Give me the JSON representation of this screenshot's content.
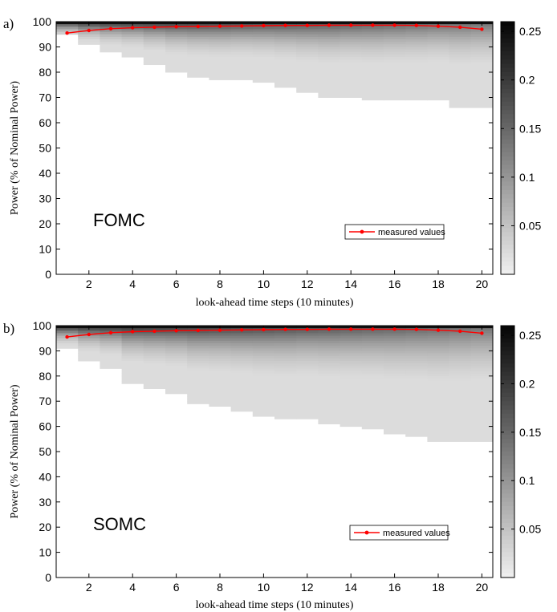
{
  "chart_data": [
    {
      "panel_label": "a)",
      "type": "heatmap",
      "annotation": "FOMC",
      "xlabel": "look-ahead time steps (10 minutes)",
      "ylabel": "Power (% of Nominal Power)",
      "xlim": [
        0.5,
        20.5
      ],
      "ylim": [
        0,
        100
      ],
      "xticks": [
        2,
        4,
        6,
        8,
        10,
        12,
        14,
        16,
        18,
        20
      ],
      "yticks": [
        0,
        10,
        20,
        30,
        40,
        50,
        60,
        70,
        80,
        90,
        100
      ],
      "colorbar": {
        "ticks": [
          0.05,
          0.1,
          0.15,
          0.2,
          0.25
        ],
        "range": [
          0,
          0.26
        ],
        "colormap": "gray-reversed"
      },
      "lower_extent": [
        95,
        91,
        88,
        86,
        83,
        80,
        78,
        77,
        77,
        76,
        74,
        72,
        70,
        70,
        69,
        69,
        69,
        69,
        66,
        66
      ],
      "series": [
        {
          "name": "measured values",
          "color": "#ff0000",
          "x": [
            1,
            2,
            3,
            4,
            5,
            6,
            7,
            8,
            9,
            10,
            11,
            12,
            13,
            14,
            15,
            16,
            17,
            18,
            19,
            20
          ],
          "values": [
            95.5,
            96.5,
            97.2,
            97.6,
            97.8,
            98.0,
            98.1,
            98.2,
            98.3,
            98.4,
            98.5,
            98.5,
            98.6,
            98.6,
            98.6,
            98.6,
            98.5,
            98.2,
            97.8,
            97.0
          ]
        }
      ],
      "legend": {
        "position": "lower-right",
        "entries": [
          "measured values"
        ]
      }
    },
    {
      "panel_label": "b)",
      "type": "heatmap",
      "annotation": "SOMC",
      "xlabel": "look-ahead time steps (10 minutes)",
      "ylabel": "Power (% of Nominal Power)",
      "xlim": [
        0.5,
        20.5
      ],
      "ylim": [
        0,
        100
      ],
      "xticks": [
        2,
        4,
        6,
        8,
        10,
        12,
        14,
        16,
        18,
        20
      ],
      "yticks": [
        0,
        10,
        20,
        30,
        40,
        50,
        60,
        70,
        80,
        90,
        100
      ],
      "colorbar": {
        "ticks": [
          0.05,
          0.1,
          0.15,
          0.2,
          0.25
        ],
        "range": [
          0,
          0.26
        ],
        "colormap": "gray-reversed"
      },
      "lower_extent": [
        91,
        86,
        83,
        77,
        75,
        73,
        69,
        68,
        66,
        64,
        63,
        63,
        61,
        60,
        59,
        57,
        56,
        54,
        54,
        54
      ],
      "series": [
        {
          "name": "measured values",
          "color": "#ff0000",
          "x": [
            1,
            2,
            3,
            4,
            5,
            6,
            7,
            8,
            9,
            10,
            11,
            12,
            13,
            14,
            15,
            16,
            17,
            18,
            19,
            20
          ],
          "values": [
            95.5,
            96.5,
            97.2,
            97.6,
            97.8,
            98.0,
            98.1,
            98.2,
            98.3,
            98.4,
            98.5,
            98.5,
            98.6,
            98.6,
            98.6,
            98.6,
            98.5,
            98.2,
            97.8,
            97.0
          ]
        }
      ],
      "legend": {
        "position": "lower-right",
        "entries": [
          "measured values"
        ]
      }
    }
  ]
}
